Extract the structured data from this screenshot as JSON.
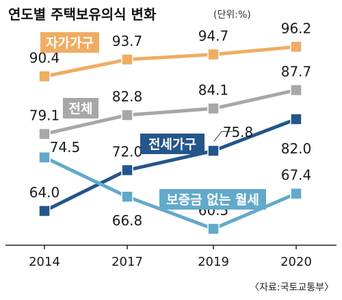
{
  "chart_data": {
    "type": "line",
    "title": "연도별 주택보유의식 변화",
    "unit": "(단위:%)",
    "source": "〈자료:국토교통부〉",
    "categories": [
      "2014",
      "2017",
      "2019",
      "2020"
    ],
    "ylim": [
      55,
      100
    ],
    "grid": false,
    "series": [
      {
        "name": "자가가구",
        "color": "#f0ac62",
        "label_bg": "#f0ac62",
        "values": [
          90.4,
          93.7,
          94.7,
          96.2
        ]
      },
      {
        "name": "전체",
        "color": "#a7a7a7",
        "label_bg": "#a7a7a7",
        "values": [
          79.1,
          82.8,
          84.1,
          87.7
        ]
      },
      {
        "name": "전세가구",
        "color": "#23568a",
        "label_bg": "#23568a",
        "values": [
          64.0,
          72.0,
          75.8,
          82.0
        ]
      },
      {
        "name": "보증금 없는 월세",
        "color": "#62a9cb",
        "label_bg": "#62a9cb",
        "values": [
          74.5,
          66.8,
          60.5,
          67.4
        ]
      }
    ]
  }
}
